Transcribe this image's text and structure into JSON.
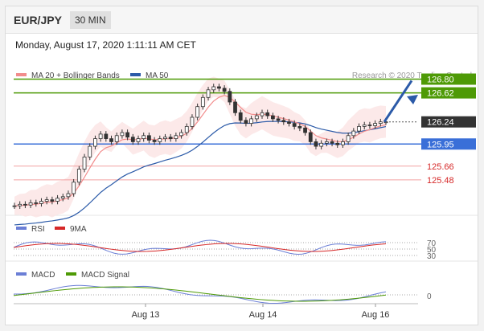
{
  "header": {
    "pair": "EUR/JPY",
    "timeframe": "30 MIN"
  },
  "date_text": "Monday, August 17, 2020 1:11:11 AM CET",
  "legend": {
    "ma20_bb": "MA 20 + Bollinger Bands",
    "ma50": "MA 50",
    "credit": "Research © 2020 Trading Central",
    "rsi": "RSI",
    "nine_ma": "9MA",
    "macd": "MACD",
    "macd_signal": "MACD Signal"
  },
  "colors": {
    "green": "#4e9a06",
    "blue": "#3a6fd8",
    "red": "#e05c5c",
    "dark": "#333333",
    "ma20": "#f28c8c",
    "ma50": "#2b5aa8",
    "bb_fill": "#fbe3e3",
    "rsi": "#6b7fd6",
    "macd_signal": "#4e9a06"
  },
  "chart_data": {
    "type": "candlestick",
    "price_levels": [
      {
        "label": "126.80",
        "value": 126.8,
        "color": "green"
      },
      {
        "label": "126.62",
        "value": 126.62,
        "color": "green"
      },
      {
        "label": "126.24",
        "value": 126.24,
        "color": "dark"
      },
      {
        "label": "125.95",
        "value": 125.95,
        "color": "blue"
      },
      {
        "label": "125.66",
        "value": 125.66,
        "color": "red"
      },
      {
        "label": "125.48",
        "value": 125.48,
        "color": "red"
      }
    ],
    "x_ticks": [
      "Aug 13",
      "Aug 14",
      "Aug 16"
    ],
    "rsi_ticks": [
      "70",
      "50",
      "30"
    ],
    "macd_ticks": [
      "0"
    ],
    "close_series": [
      125.14,
      125.16,
      125.15,
      125.18,
      125.17,
      125.2,
      125.22,
      125.2,
      125.24,
      125.26,
      125.3,
      125.45,
      125.62,
      125.78,
      125.92,
      126.02,
      126.08,
      126.02,
      125.98,
      126.06,
      126.1,
      126.04,
      125.98,
      126.02,
      126.06,
      126.0,
      125.98,
      126.02,
      126.04,
      126.02,
      126.06,
      126.1,
      126.18,
      126.3,
      126.44,
      126.56,
      126.66,
      126.7,
      126.68,
      126.64,
      126.5,
      126.36,
      126.26,
      126.22,
      126.28,
      126.32,
      126.36,
      126.32,
      126.28,
      126.26,
      126.24,
      126.22,
      126.18,
      126.16,
      126.1,
      125.98,
      125.92,
      125.96,
      125.98,
      125.96,
      125.94,
      125.98,
      126.06,
      126.12,
      126.18,
      126.2,
      126.19,
      126.22,
      126.24,
      126.24
    ]
  }
}
